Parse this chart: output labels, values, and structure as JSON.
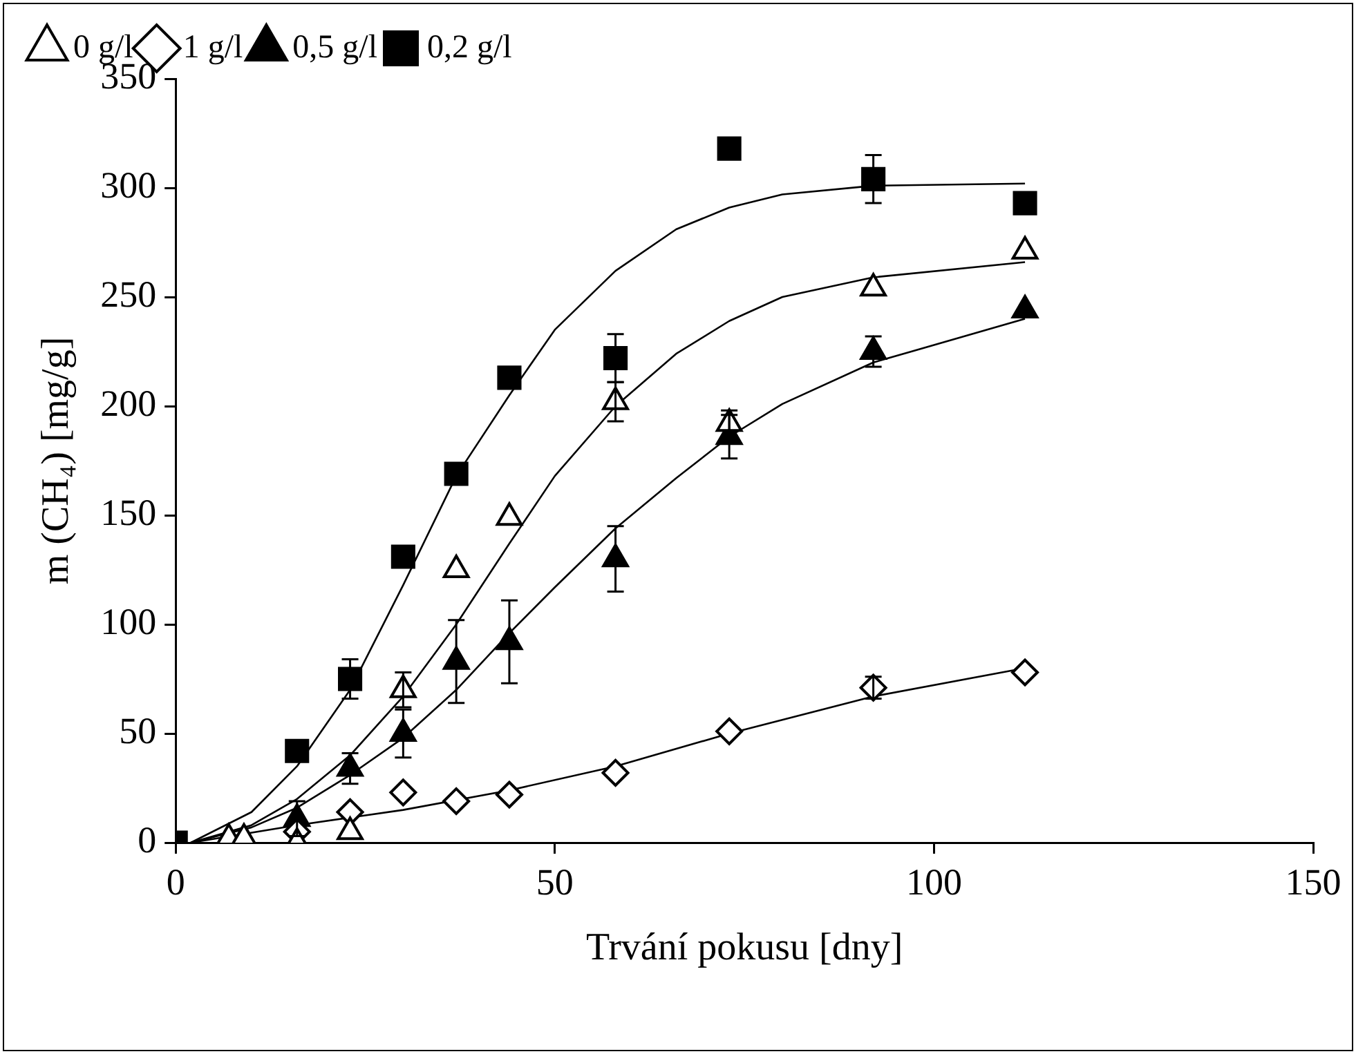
{
  "chart_data": {
    "type": "scatter",
    "xlabel": "Trvání pokusu [dny]",
    "ylabel": "m (CH₄) [mg/g]",
    "xlim": [
      0,
      150
    ],
    "xticks": [
      0,
      50,
      100,
      150
    ],
    "ylim": [
      0,
      350
    ],
    "yticks": [
      0,
      50,
      100,
      150,
      200,
      250,
      300,
      350
    ],
    "grid": false,
    "legend": "top left",
    "series": [
      {
        "name": "0 g/l",
        "marker": "triangle",
        "color": "#ffffff",
        "x": [
          7,
          9,
          16,
          23,
          30,
          37,
          44,
          58,
          73,
          92,
          112
        ],
        "values": [
          2,
          2,
          0,
          5,
          70,
          125,
          149,
          202,
          192,
          254,
          271
        ],
        "errors": [
          null,
          null,
          null,
          null,
          8,
          null,
          null,
          9,
          6,
          null,
          null
        ]
      },
      {
        "name": "1 g/l",
        "marker": "diamond",
        "color": "#ffffff",
        "x": [
          16,
          23,
          30,
          37,
          44,
          58,
          73,
          92,
          112
        ],
        "values": [
          5,
          14,
          23,
          19,
          22,
          32,
          51,
          71,
          78
        ],
        "errors": [
          null,
          null,
          null,
          null,
          null,
          null,
          null,
          5,
          null
        ]
      },
      {
        "name": "0,5 g/l",
        "marker": "triangle",
        "color": "#000000",
        "x": [
          16,
          23,
          30,
          37,
          44,
          58,
          73,
          92,
          112
        ],
        "values": [
          11,
          34,
          50,
          83,
          92,
          130,
          186,
          225,
          244
        ],
        "errors": [
          8,
          7,
          11,
          19,
          19,
          15,
          10,
          7,
          null
        ]
      },
      {
        "name": "0,2 g/l",
        "marker": "square",
        "color": "#000000",
        "x": [
          0,
          16,
          23,
          30,
          37,
          44,
          58,
          73,
          92,
          112
        ],
        "values": [
          0,
          42,
          75,
          131,
          169,
          213,
          222,
          318,
          304,
          293
        ],
        "errors": [
          null,
          null,
          9,
          null,
          null,
          null,
          11,
          null,
          11,
          null
        ]
      },
      {
        "type": "line",
        "marker": "none",
        "color": "#000000",
        "x": [
          2,
          10,
          16,
          23,
          30,
          37,
          44,
          50,
          58,
          66,
          73,
          80,
          92,
          112
        ],
        "values": [
          0,
          14,
          35,
          70,
          118,
          168,
          205,
          235,
          262,
          281,
          291,
          297,
          301,
          302
        ]
      },
      {
        "type": "line",
        "marker": "none",
        "color": "#000000",
        "x": [
          2,
          10,
          16,
          23,
          30,
          37,
          44,
          50,
          58,
          66,
          73,
          80,
          92,
          112
        ],
        "values": [
          0,
          8,
          20,
          40,
          67,
          100,
          137,
          168,
          200,
          224,
          239,
          250,
          259,
          266
        ]
      },
      {
        "type": "line",
        "marker": "none",
        "color": "#000000",
        "x": [
          2,
          10,
          16,
          23,
          30,
          37,
          44,
          50,
          58,
          66,
          73,
          80,
          92,
          112
        ],
        "values": [
          0,
          7,
          16,
          31,
          48,
          70,
          96,
          117,
          144,
          167,
          186,
          201,
          220,
          240
        ]
      },
      {
        "type": "line",
        "marker": "none",
        "color": "#000000",
        "x": [
          2,
          16,
          30,
          44,
          58,
          73,
          92,
          112
        ],
        "values": [
          0,
          8,
          15,
          24,
          35,
          50,
          67,
          80
        ]
      }
    ]
  }
}
